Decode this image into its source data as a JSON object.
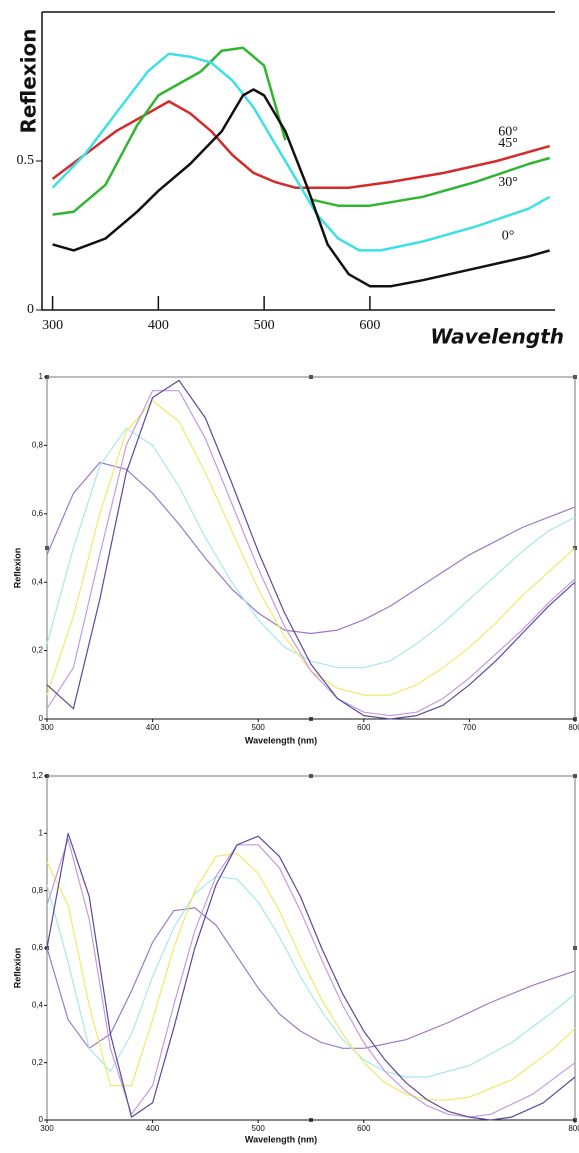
{
  "chart_data": [
    {
      "type": "line",
      "ylabel": "Reflexion",
      "xlabel": "Wavelength",
      "xlim": [
        290,
        775
      ],
      "ylim": [
        0,
        1
      ],
      "xticks": [
        300,
        400,
        500,
        600
      ],
      "yticks": [
        0,
        0.5
      ],
      "series": [
        {
          "name": "60°",
          "color": "#d42a2a",
          "x": [
            300,
            330,
            360,
            390,
            410,
            430,
            450,
            470,
            490,
            510,
            530,
            550,
            580,
            620,
            670,
            720,
            770
          ],
          "values": [
            0.44,
            0.52,
            0.6,
            0.66,
            0.7,
            0.66,
            0.6,
            0.52,
            0.46,
            0.43,
            0.41,
            0.41,
            0.41,
            0.43,
            0.46,
            0.5,
            0.55
          ]
        },
        {
          "name": "45°",
          "color": "#2fb52f",
          "x": [
            300,
            320,
            350,
            380,
            400,
            420,
            440,
            460,
            480,
            500,
            520,
            532,
            545,
            570,
            600,
            650,
            700,
            750,
            770
          ],
          "values": [
            0.32,
            0.33,
            0.42,
            0.62,
            0.72,
            0.76,
            0.8,
            0.87,
            0.88,
            0.82,
            0.57,
            null,
            0.37,
            0.35,
            0.35,
            0.38,
            0.43,
            0.49,
            0.51
          ]
        },
        {
          "name": "30°",
          "color": "#3ee0e8",
          "x": [
            300,
            330,
            360,
            390,
            410,
            430,
            450,
            470,
            490,
            510,
            530,
            550,
            570,
            590,
            610,
            650,
            700,
            750,
            770
          ],
          "values": [
            0.41,
            0.52,
            0.66,
            0.8,
            0.86,
            0.85,
            0.83,
            0.77,
            0.68,
            0.56,
            0.44,
            0.32,
            0.24,
            0.2,
            0.2,
            0.23,
            0.28,
            0.34,
            0.38
          ]
        },
        {
          "name": "0°",
          "color": "#111111",
          "x": [
            300,
            320,
            350,
            380,
            400,
            430,
            460,
            480,
            490,
            500,
            520,
            540,
            560,
            580,
            600,
            620,
            650,
            700,
            750,
            770
          ],
          "values": [
            0.22,
            0.2,
            0.24,
            0.33,
            0.4,
            0.49,
            0.6,
            0.72,
            0.74,
            0.72,
            0.6,
            0.42,
            0.22,
            0.12,
            0.08,
            0.08,
            0.1,
            0.14,
            0.18,
            0.2
          ]
        }
      ]
    },
    {
      "type": "line",
      "ylabel": "Reflexion",
      "xlabel": "Wavelength (nm)",
      "xlim": [
        300,
        800
      ],
      "ylim": [
        0,
        1
      ],
      "xticks": [
        300,
        400,
        500,
        600,
        700,
        800
      ],
      "yticks": [
        0,
        {
          "value": 0.2,
          "label": "0,2"
        },
        {
          "value": 0.4,
          "label": "0,4"
        },
        {
          "value": 0.6,
          "label": "0,6"
        },
        {
          "value": 0.8,
          "label": "0,8"
        },
        1
      ],
      "series": [
        {
          "color": "#9a7ac8",
          "x": [
            300,
            325,
            350,
            375,
            400,
            425,
            450,
            475,
            500,
            525,
            550,
            575,
            600,
            625,
            650,
            675,
            700,
            725,
            750,
            775,
            800
          ],
          "values": [
            0.48,
            0.66,
            0.75,
            0.73,
            0.66,
            0.57,
            0.47,
            0.38,
            0.31,
            0.26,
            0.25,
            0.26,
            0.29,
            0.33,
            0.38,
            0.43,
            0.48,
            0.52,
            0.56,
            0.59,
            0.62
          ]
        },
        {
          "color": "#a8e8ea",
          "x": [
            300,
            325,
            350,
            375,
            400,
            425,
            450,
            475,
            500,
            525,
            550,
            575,
            600,
            625,
            650,
            675,
            700,
            725,
            750,
            775,
            800
          ],
          "values": [
            0.22,
            0.5,
            0.74,
            0.85,
            0.8,
            0.68,
            0.53,
            0.4,
            0.29,
            0.21,
            0.17,
            0.15,
            0.15,
            0.17,
            0.22,
            0.28,
            0.35,
            0.42,
            0.49,
            0.55,
            0.59
          ]
        },
        {
          "color": "#f2e96a",
          "x": [
            300,
            325,
            350,
            375,
            400,
            425,
            450,
            475,
            500,
            525,
            550,
            575,
            600,
            625,
            650,
            675,
            700,
            725,
            750,
            775,
            800
          ],
          "values": [
            0.07,
            0.3,
            0.6,
            0.84,
            0.93,
            0.87,
            0.72,
            0.55,
            0.38,
            0.24,
            0.14,
            0.09,
            0.07,
            0.07,
            0.1,
            0.15,
            0.21,
            0.28,
            0.36,
            0.43,
            0.5
          ]
        },
        {
          "color": "#c49ae0",
          "x": [
            300,
            325,
            350,
            375,
            400,
            425,
            450,
            475,
            500,
            525,
            550,
            575,
            600,
            625,
            650,
            675,
            700,
            725,
            750,
            775,
            800
          ],
          "values": [
            0.03,
            0.15,
            0.48,
            0.8,
            0.96,
            0.96,
            0.82,
            0.63,
            0.44,
            0.27,
            0.14,
            0.06,
            0.02,
            0.01,
            0.02,
            0.06,
            0.12,
            0.19,
            0.26,
            0.34,
            0.41
          ]
        },
        {
          "color": "#5a4a9a",
          "x": [
            300,
            325,
            350,
            375,
            400,
            425,
            450,
            475,
            500,
            525,
            550,
            575,
            600,
            625,
            650,
            675,
            700,
            725,
            750,
            775,
            800
          ],
          "values": [
            0.1,
            0.03,
            0.35,
            0.72,
            0.94,
            0.99,
            0.88,
            0.69,
            0.49,
            0.31,
            0.16,
            0.06,
            0.01,
            0.0,
            0.01,
            0.04,
            0.1,
            0.17,
            0.25,
            0.33,
            0.4
          ]
        }
      ]
    },
    {
      "type": "line",
      "ylabel": "Reflexion",
      "xlabel": "Wavelength (nm)",
      "xlim": [
        300,
        800
      ],
      "ylim": [
        0,
        1.2
      ],
      "xticks": [
        300,
        400,
        500,
        600,
        800
      ],
      "yticks": [
        0,
        {
          "value": 0.2,
          "label": "0,2"
        },
        {
          "value": 0.4,
          "label": "0,4"
        },
        {
          "value": 0.6,
          "label": "0,6"
        },
        {
          "value": 0.8,
          "label": "0,8"
        },
        1,
        {
          "value": 1.2,
          "label": "1,2"
        }
      ],
      "series": [
        {
          "color": "#9a7ac8",
          "x": [
            300,
            320,
            340,
            360,
            380,
            400,
            420,
            440,
            460,
            480,
            500,
            520,
            540,
            560,
            580,
            600,
            640,
            680,
            720,
            760,
            800
          ],
          "values": [
            0.6,
            0.35,
            0.25,
            0.3,
            0.45,
            0.62,
            0.73,
            0.74,
            0.68,
            0.57,
            0.46,
            0.37,
            0.31,
            0.27,
            0.25,
            0.25,
            0.28,
            0.34,
            0.41,
            0.47,
            0.52
          ]
        },
        {
          "color": "#a8e8ea",
          "x": [
            300,
            320,
            340,
            360,
            380,
            400,
            420,
            440,
            460,
            480,
            500,
            520,
            540,
            560,
            580,
            600,
            620,
            640,
            660,
            700,
            740,
            780,
            800
          ],
          "values": [
            0.82,
            0.55,
            0.25,
            0.17,
            0.3,
            0.5,
            0.67,
            0.79,
            0.85,
            0.84,
            0.76,
            0.64,
            0.5,
            0.38,
            0.28,
            0.21,
            0.17,
            0.15,
            0.15,
            0.19,
            0.27,
            0.38,
            0.44
          ]
        },
        {
          "color": "#f2e96a",
          "x": [
            300,
            320,
            340,
            360,
            380,
            400,
            420,
            440,
            460,
            480,
            500,
            520,
            540,
            560,
            580,
            600,
            620,
            640,
            660,
            680,
            700,
            740,
            780,
            800
          ],
          "values": [
            0.9,
            0.75,
            0.4,
            0.12,
            0.12,
            0.35,
            0.6,
            0.8,
            0.92,
            0.93,
            0.86,
            0.73,
            0.57,
            0.42,
            0.3,
            0.2,
            0.13,
            0.09,
            0.07,
            0.07,
            0.08,
            0.14,
            0.25,
            0.32
          ]
        },
        {
          "color": "#c49ae0",
          "x": [
            300,
            320,
            340,
            360,
            380,
            400,
            420,
            440,
            460,
            480,
            500,
            520,
            540,
            560,
            580,
            600,
            620,
            640,
            660,
            680,
            700,
            720,
            760,
            800
          ],
          "values": [
            0.75,
            0.98,
            0.7,
            0.25,
            0.02,
            0.12,
            0.4,
            0.66,
            0.85,
            0.96,
            0.96,
            0.88,
            0.73,
            0.56,
            0.4,
            0.27,
            0.17,
            0.1,
            0.05,
            0.02,
            0.01,
            0.02,
            0.09,
            0.2
          ]
        },
        {
          "color": "#5a4a9a",
          "x": [
            300,
            320,
            340,
            360,
            380,
            400,
            420,
            440,
            460,
            480,
            500,
            520,
            540,
            560,
            580,
            600,
            620,
            640,
            660,
            680,
            700,
            720,
            740,
            770,
            800
          ],
          "values": [
            0.6,
            1.0,
            0.78,
            0.3,
            0.01,
            0.06,
            0.32,
            0.6,
            0.82,
            0.96,
            0.99,
            0.92,
            0.78,
            0.6,
            0.44,
            0.31,
            0.21,
            0.13,
            0.07,
            0.03,
            0.01,
            0.0,
            0.01,
            0.06,
            0.15
          ]
        }
      ]
    }
  ]
}
